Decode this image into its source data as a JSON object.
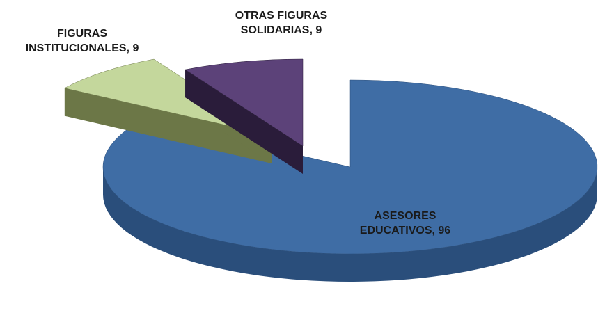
{
  "chart_data": {
    "type": "pie3d",
    "values": [
      96,
      9,
      9
    ],
    "value_labels": [
      "ASESORES EDUCATIVOS, 96",
      "FIGURAS INSTITUCIONALES, 9",
      "OTRAS FIGURAS SOLIDARIAS, 9"
    ],
    "colors": [
      "#3f6da5",
      "#c4d79c",
      "#5c4279"
    ],
    "side_colors": [
      "#2a4e7b",
      "#6c7747",
      "#2a1c3a"
    ]
  }
}
